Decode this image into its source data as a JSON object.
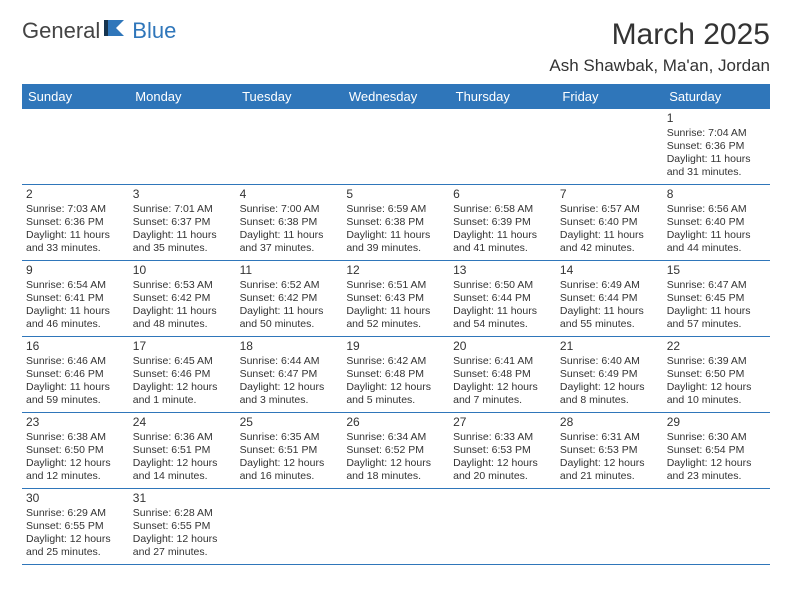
{
  "logo": {
    "general": "General",
    "blue": "Blue"
  },
  "header": {
    "title": "March 2025",
    "location": "Ash Shawbak, Ma'an, Jordan"
  },
  "colors": {
    "brand_blue": "#2f76ba",
    "text": "#333333",
    "background": "#ffffff"
  },
  "calendar": {
    "day_headers": [
      "Sunday",
      "Monday",
      "Tuesday",
      "Wednesday",
      "Thursday",
      "Friday",
      "Saturday"
    ],
    "weeks": [
      [
        null,
        null,
        null,
        null,
        null,
        null,
        {
          "n": "1",
          "sr": "Sunrise: 7:04 AM",
          "ss": "Sunset: 6:36 PM",
          "dl": "Daylight: 11 hours and 31 minutes."
        }
      ],
      [
        {
          "n": "2",
          "sr": "Sunrise: 7:03 AM",
          "ss": "Sunset: 6:36 PM",
          "dl": "Daylight: 11 hours and 33 minutes."
        },
        {
          "n": "3",
          "sr": "Sunrise: 7:01 AM",
          "ss": "Sunset: 6:37 PM",
          "dl": "Daylight: 11 hours and 35 minutes."
        },
        {
          "n": "4",
          "sr": "Sunrise: 7:00 AM",
          "ss": "Sunset: 6:38 PM",
          "dl": "Daylight: 11 hours and 37 minutes."
        },
        {
          "n": "5",
          "sr": "Sunrise: 6:59 AM",
          "ss": "Sunset: 6:38 PM",
          "dl": "Daylight: 11 hours and 39 minutes."
        },
        {
          "n": "6",
          "sr": "Sunrise: 6:58 AM",
          "ss": "Sunset: 6:39 PM",
          "dl": "Daylight: 11 hours and 41 minutes."
        },
        {
          "n": "7",
          "sr": "Sunrise: 6:57 AM",
          "ss": "Sunset: 6:40 PM",
          "dl": "Daylight: 11 hours and 42 minutes."
        },
        {
          "n": "8",
          "sr": "Sunrise: 6:56 AM",
          "ss": "Sunset: 6:40 PM",
          "dl": "Daylight: 11 hours and 44 minutes."
        }
      ],
      [
        {
          "n": "9",
          "sr": "Sunrise: 6:54 AM",
          "ss": "Sunset: 6:41 PM",
          "dl": "Daylight: 11 hours and 46 minutes."
        },
        {
          "n": "10",
          "sr": "Sunrise: 6:53 AM",
          "ss": "Sunset: 6:42 PM",
          "dl": "Daylight: 11 hours and 48 minutes."
        },
        {
          "n": "11",
          "sr": "Sunrise: 6:52 AM",
          "ss": "Sunset: 6:42 PM",
          "dl": "Daylight: 11 hours and 50 minutes."
        },
        {
          "n": "12",
          "sr": "Sunrise: 6:51 AM",
          "ss": "Sunset: 6:43 PM",
          "dl": "Daylight: 11 hours and 52 minutes."
        },
        {
          "n": "13",
          "sr": "Sunrise: 6:50 AM",
          "ss": "Sunset: 6:44 PM",
          "dl": "Daylight: 11 hours and 54 minutes."
        },
        {
          "n": "14",
          "sr": "Sunrise: 6:49 AM",
          "ss": "Sunset: 6:44 PM",
          "dl": "Daylight: 11 hours and 55 minutes."
        },
        {
          "n": "15",
          "sr": "Sunrise: 6:47 AM",
          "ss": "Sunset: 6:45 PM",
          "dl": "Daylight: 11 hours and 57 minutes."
        }
      ],
      [
        {
          "n": "16",
          "sr": "Sunrise: 6:46 AM",
          "ss": "Sunset: 6:46 PM",
          "dl": "Daylight: 11 hours and 59 minutes."
        },
        {
          "n": "17",
          "sr": "Sunrise: 6:45 AM",
          "ss": "Sunset: 6:46 PM",
          "dl": "Daylight: 12 hours and 1 minute."
        },
        {
          "n": "18",
          "sr": "Sunrise: 6:44 AM",
          "ss": "Sunset: 6:47 PM",
          "dl": "Daylight: 12 hours and 3 minutes."
        },
        {
          "n": "19",
          "sr": "Sunrise: 6:42 AM",
          "ss": "Sunset: 6:48 PM",
          "dl": "Daylight: 12 hours and 5 minutes."
        },
        {
          "n": "20",
          "sr": "Sunrise: 6:41 AM",
          "ss": "Sunset: 6:48 PM",
          "dl": "Daylight: 12 hours and 7 minutes."
        },
        {
          "n": "21",
          "sr": "Sunrise: 6:40 AM",
          "ss": "Sunset: 6:49 PM",
          "dl": "Daylight: 12 hours and 8 minutes."
        },
        {
          "n": "22",
          "sr": "Sunrise: 6:39 AM",
          "ss": "Sunset: 6:50 PM",
          "dl": "Daylight: 12 hours and 10 minutes."
        }
      ],
      [
        {
          "n": "23",
          "sr": "Sunrise: 6:38 AM",
          "ss": "Sunset: 6:50 PM",
          "dl": "Daylight: 12 hours and 12 minutes."
        },
        {
          "n": "24",
          "sr": "Sunrise: 6:36 AM",
          "ss": "Sunset: 6:51 PM",
          "dl": "Daylight: 12 hours and 14 minutes."
        },
        {
          "n": "25",
          "sr": "Sunrise: 6:35 AM",
          "ss": "Sunset: 6:51 PM",
          "dl": "Daylight: 12 hours and 16 minutes."
        },
        {
          "n": "26",
          "sr": "Sunrise: 6:34 AM",
          "ss": "Sunset: 6:52 PM",
          "dl": "Daylight: 12 hours and 18 minutes."
        },
        {
          "n": "27",
          "sr": "Sunrise: 6:33 AM",
          "ss": "Sunset: 6:53 PM",
          "dl": "Daylight: 12 hours and 20 minutes."
        },
        {
          "n": "28",
          "sr": "Sunrise: 6:31 AM",
          "ss": "Sunset: 6:53 PM",
          "dl": "Daylight: 12 hours and 21 minutes."
        },
        {
          "n": "29",
          "sr": "Sunrise: 6:30 AM",
          "ss": "Sunset: 6:54 PM",
          "dl": "Daylight: 12 hours and 23 minutes."
        }
      ],
      [
        {
          "n": "30",
          "sr": "Sunrise: 6:29 AM",
          "ss": "Sunset: 6:55 PM",
          "dl": "Daylight: 12 hours and 25 minutes."
        },
        {
          "n": "31",
          "sr": "Sunrise: 6:28 AM",
          "ss": "Sunset: 6:55 PM",
          "dl": "Daylight: 12 hours and 27 minutes."
        },
        null,
        null,
        null,
        null,
        null
      ]
    ]
  }
}
